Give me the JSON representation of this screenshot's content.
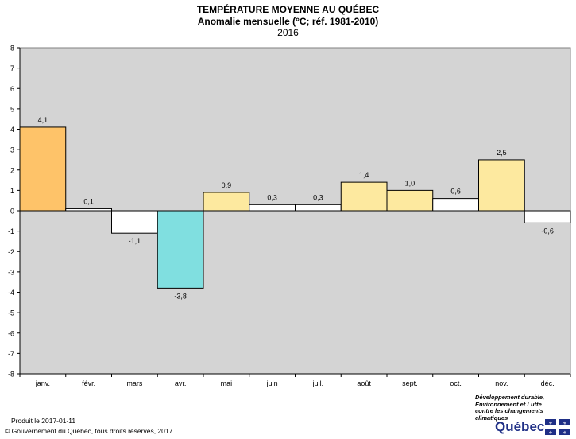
{
  "chart_data": {
    "type": "bar",
    "title": "TEMPÉRATURE MOYENNE AU QUÉBEC",
    "subtitle": "Anomalie mensuelle (°C; réf. 1981-2010)",
    "year_label": "2016",
    "categories": [
      "janv.",
      "févr.",
      "mars",
      "avr.",
      "mai",
      "juin",
      "juil.",
      "août",
      "sept.",
      "oct.",
      "nov.",
      "déc."
    ],
    "values": [
      4.1,
      0.1,
      -1.1,
      -3.8,
      0.9,
      0.3,
      0.3,
      1.4,
      1.0,
      0.6,
      2.5,
      -0.6
    ],
    "value_labels": [
      "4,1",
      "0,1",
      "-1,1",
      "-3,8",
      "0,9",
      "0,3",
      "0,3",
      "1,4",
      "1,0",
      "0,6",
      "2,5",
      "-0,6"
    ],
    "bar_colors": [
      "#fec369",
      "#ffffff",
      "#ffffff",
      "#80dfe0",
      "#fde99f",
      "#ffffff",
      "#ffffff",
      "#fde99f",
      "#fde99f",
      "#ffffff",
      "#fde99f",
      "#ffffff"
    ],
    "ylim": [
      -8,
      8
    ],
    "yticks": [
      8,
      7,
      6,
      5,
      4,
      3,
      2,
      1,
      0,
      -1,
      -2,
      -3,
      -4,
      -5,
      -6,
      -7,
      -8
    ],
    "grid": false,
    "legend": "none",
    "plot_background": "#d4d4d4"
  },
  "footer": {
    "produced": "Produit le 2017-01-11",
    "copyright": "© Gouvernement du Québec, tous droits réservés, 2017"
  },
  "branding": {
    "ministry_lines": [
      "Développement durable,",
      "Environnement et Lutte",
      "contre les changements",
      "climatiques"
    ],
    "brand": "Québec",
    "flag_icon": "fleurdelise-flag-icon",
    "flag_color": "#1f2f86"
  }
}
